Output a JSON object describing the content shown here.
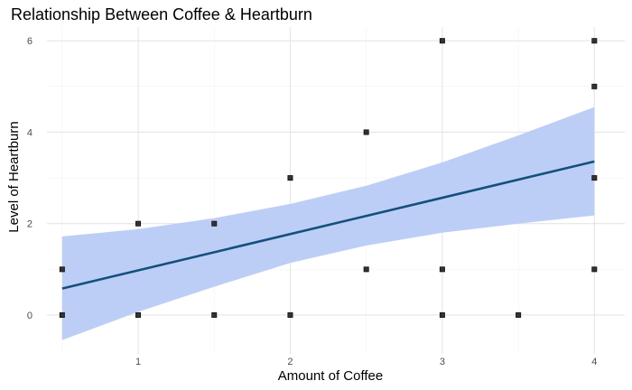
{
  "chart_data": {
    "type": "scatter",
    "title": "Relationship Between Coffee & Heartburn",
    "xlabel": "Amount of Coffee",
    "ylabel": "Level of Heartburn",
    "xlim": [
      0.4,
      4.2
    ],
    "ylim": [
      -0.85,
      6.3
    ],
    "x_ticks": [
      1,
      2,
      3,
      4
    ],
    "y_ticks": [
      0,
      2,
      4,
      6
    ],
    "x_minor_ticks": [
      0.5,
      1.5,
      2.5,
      3.5
    ],
    "y_minor_ticks": [
      1,
      3,
      5
    ],
    "grid": true,
    "points": [
      {
        "x": 0.5,
        "y": 1
      },
      {
        "x": 0.5,
        "y": 0
      },
      {
        "x": 1,
        "y": 2
      },
      {
        "x": 1,
        "y": 0
      },
      {
        "x": 1.5,
        "y": 2
      },
      {
        "x": 1.5,
        "y": 0
      },
      {
        "x": 2,
        "y": 3
      },
      {
        "x": 2,
        "y": 0
      },
      {
        "x": 2.5,
        "y": 4
      },
      {
        "x": 2.5,
        "y": 1
      },
      {
        "x": 3,
        "y": 6
      },
      {
        "x": 3,
        "y": 1
      },
      {
        "x": 3,
        "y": 0
      },
      {
        "x": 3.5,
        "y": 0
      },
      {
        "x": 4,
        "y": 6
      },
      {
        "x": 4,
        "y": 5
      },
      {
        "x": 4,
        "y": 3
      },
      {
        "x": 4,
        "y": 1
      }
    ],
    "fit_line": {
      "x": [
        0.5,
        4
      ],
      "y": [
        0.58,
        3.36
      ]
    },
    "confidence_band": {
      "x": [
        0.5,
        1,
        1.5,
        2,
        2.5,
        3,
        3.5,
        4
      ],
      "lower": [
        -0.55,
        0.07,
        0.62,
        1.14,
        1.52,
        1.8,
        2.0,
        2.18
      ],
      "upper": [
        1.72,
        1.88,
        2.12,
        2.43,
        2.83,
        3.34,
        3.93,
        4.55
      ]
    },
    "colors": {
      "point": "#333333",
      "fit_line": "#14507d",
      "band": "#b9cbf5",
      "grid_major": "#e5e5e5",
      "grid_minor": "#f2f2f2"
    }
  }
}
